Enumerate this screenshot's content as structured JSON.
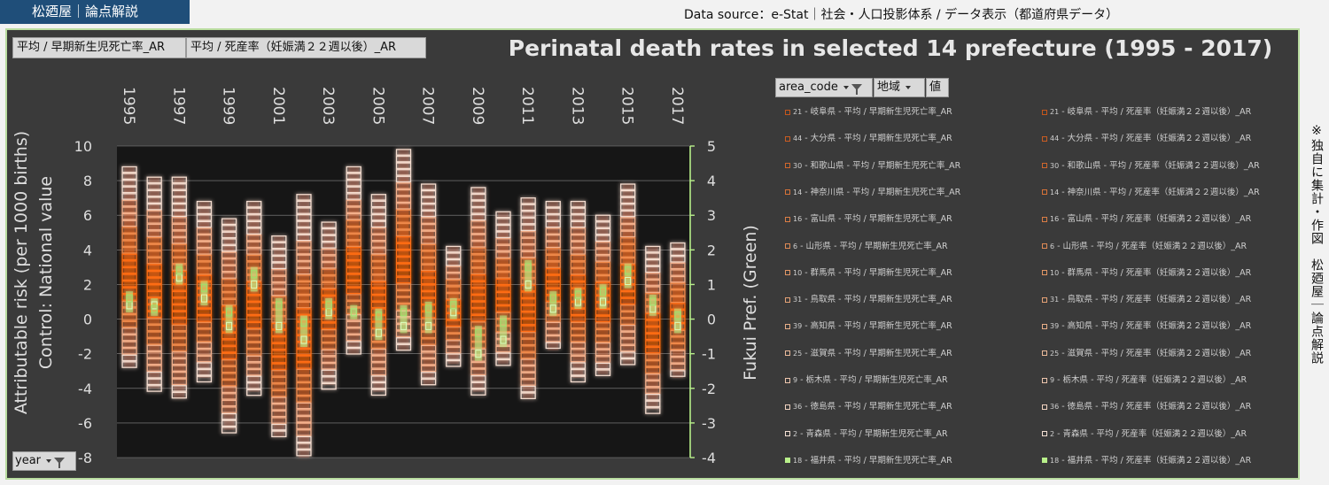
{
  "header": {
    "badge": "松廼屋｜論点解説",
    "source": "Data source：e-Stat｜社会・人口投影体系 / データ表示（都道府県データ）"
  },
  "side_note": "※独自に集計・作図　松廼屋｜論点解説",
  "field_buttons": [
    "平均 / 早期新生児死亡率_AR",
    "平均 / 死産率（妊娠満２２週以後）_AR"
  ],
  "filters": {
    "area_code": "area_code",
    "region": "地域",
    "value": "値",
    "year": "year"
  },
  "colors": {
    "panel_bg": "#3a3a3a",
    "plot_bg": "#161616",
    "orange": "#e8641a",
    "green": "#b8f08a"
  },
  "chart_data": {
    "type": "bar",
    "title": "Perinatal death rates in selected 14 prefecture (1995 - 2017)",
    "ylabel": "Attributable risk (per 1000 births)\nControl: National value",
    "y2label": "Fukui Pref. (Green)",
    "ylim": [
      -8,
      10
    ],
    "yticks": [
      "10",
      "8",
      "6",
      "4",
      "2",
      "0",
      "-2",
      "-4",
      "-6",
      "-8"
    ],
    "y2lim": [
      -4,
      5
    ],
    "y2ticks": [
      "5",
      "4",
      "3",
      "2",
      "1",
      "0",
      "-1",
      "-2",
      "-3",
      "-4"
    ],
    "x": [
      "1995",
      "1996",
      "1997",
      "1998",
      "1999",
      "2000",
      "2001",
      "2002",
      "2003",
      "2004",
      "2005",
      "2006",
      "2007",
      "2008",
      "2009",
      "2010",
      "2011",
      "2012",
      "2013",
      "2014",
      "2015",
      "2016",
      "2017"
    ],
    "x_tick_labels": [
      "1995",
      "1997",
      "1999",
      "2001",
      "2003",
      "2005",
      "2007",
      "2009",
      "2011",
      "2013",
      "2015",
      "2017"
    ],
    "range_max": [
      8.8,
      8.2,
      8.2,
      6.8,
      5.8,
      6.8,
      4.8,
      7.2,
      5.6,
      8.8,
      7.2,
      9.8,
      7.8,
      4.2,
      7.6,
      6.2,
      7.0,
      6.8,
      6.8,
      6.0,
      7.8,
      4.2,
      4.4
    ],
    "range_min": [
      -2.8,
      -4.0,
      -4.6,
      -3.4,
      -6.4,
      -4.2,
      -6.8,
      -8.0,
      -3.8,
      -2.0,
      -4.2,
      -1.8,
      -3.8,
      -2.6,
      -4.2,
      -2.6,
      -4.6,
      -1.8,
      -3.4,
      -3.2,
      -2.6,
      -5.2,
      -3.4
    ],
    "fukui_early_neonatal": [
      0.4,
      0.4,
      1.2,
      0.6,
      -0.2,
      1.0,
      -0.2,
      -0.6,
      0.2,
      0.2,
      -0.4,
      -0.2,
      -0.2,
      0.2,
      -1.0,
      -0.6,
      1.0,
      0.3,
      0.5,
      0.5,
      1.1,
      0.3,
      -0.2
    ],
    "fukui_stillbirth": [
      0.6,
      0.3,
      1.4,
      0.9,
      0.2,
      1.3,
      0.4,
      -0.1,
      0.4,
      0.2,
      0.1,
      0.2,
      0.3,
      0.4,
      -0.4,
      -0.1,
      1.5,
      0.6,
      0.7,
      0.8,
      1.4,
      0.5,
      0.1
    ],
    "legend": [
      {
        "code": "21",
        "label": "岐阜県 - 平均 / 早期新生児死亡率_AR",
        "label2": "岐阜県 - 平均 / 死産率（妊娠満２２週以後）_AR",
        "color": "#c5561c"
      },
      {
        "code": "44",
        "label": "大分県 - 平均 / 早期新生児死亡率_AR",
        "label2": "大分県 - 平均 / 死産率（妊娠満２２週以後）_AR",
        "color": "#c95c22"
      },
      {
        "code": "30",
        "label": "和歌山県 - 平均 / 早期新生児死亡率_AR",
        "label2": "和歌山県 - 平均 / 死産率（妊娠満２２週以後）_AR",
        "color": "#d0662c"
      },
      {
        "code": "14",
        "label": "神奈川県 - 平均 / 早期新生児死亡率_AR",
        "label2": "神奈川県 - 平均 / 死産率（妊娠満２２週以後）_AR",
        "color": "#d67238"
      },
      {
        "code": "16",
        "label": "富山県 - 平均 / 早期新生児死亡率_AR",
        "label2": "富山県 - 平均 / 死産率（妊娠満２２週以後）_AR",
        "color": "#db7d45"
      },
      {
        "code": "6",
        "label": "山形県 - 平均 / 早期新生児死亡率_AR",
        "label2": "山形県 - 平均 / 死産率（妊娠満２２週以後）_AR",
        "color": "#df8a55"
      },
      {
        "code": "10",
        "label": "群馬県 - 平均 / 早期新生児死亡率_AR",
        "label2": "群馬県 - 平均 / 死産率（妊娠満２２週以後）_AR",
        "color": "#e29665"
      },
      {
        "code": "31",
        "label": "鳥取県 - 平均 / 早期新生児死亡率_AR",
        "label2": "鳥取県 - 平均 / 死産率（妊娠満２２週以後）_AR",
        "color": "#e5a276"
      },
      {
        "code": "39",
        "label": "高知県 - 平均 / 早期新生児死亡率_AR",
        "label2": "高知県 - 平均 / 死産率（妊娠満２２週以後）_AR",
        "color": "#e8ae88"
      },
      {
        "code": "25",
        "label": "滋賀県 - 平均 / 早期新生児死亡率_AR",
        "label2": "滋賀県 - 平均 / 死産率（妊娠満２２週以後）_AR",
        "color": "#ebba9a"
      },
      {
        "code": "9",
        "label": "栃木県 - 平均 / 早期新生児死亡率_AR",
        "label2": "栃木県 - 平均 / 死産率（妊娠満２２週以後）_AR",
        "color": "#eec6ad"
      },
      {
        "code": "36",
        "label": "徳島県 - 平均 / 早期新生児死亡率_AR",
        "label2": "徳島県 - 平均 / 死産率（妊娠満２２週以後）_AR",
        "color": "#f1d3c0"
      },
      {
        "code": "2",
        "label": "青森県 - 平均 / 早期新生児死亡率_AR",
        "label2": "青森県 - 平均 / 死産率（妊娠満２２週以後）_AR",
        "color": "#f4e0d4"
      },
      {
        "code": "18",
        "label": "福井県 - 平均 / 早期新生児死亡率_AR",
        "label2": "福井県 - 平均 / 死産率（妊娠満２２週以後）_AR",
        "color": "#b8f08a"
      }
    ]
  }
}
